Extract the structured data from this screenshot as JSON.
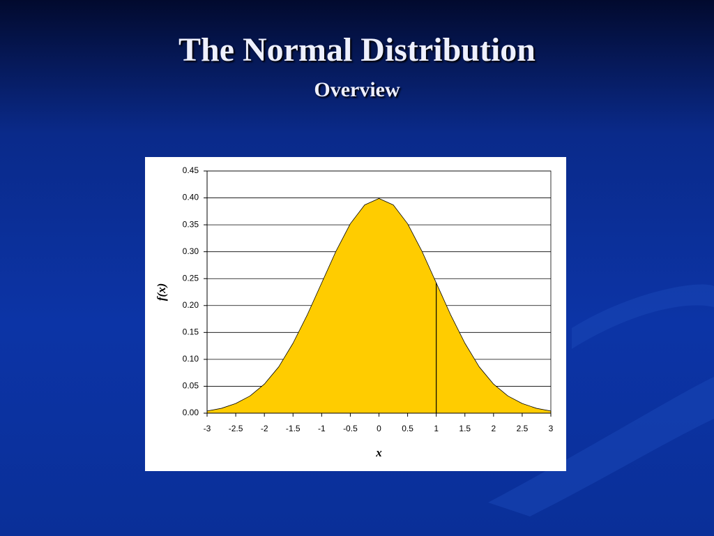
{
  "slide_title": "The Normal Distribution",
  "slide_subtitle": "Overview",
  "chart_data": {
    "type": "area",
    "xlabel": "x",
    "ylabel": "f(x)",
    "color": "#ffcc00",
    "grid": true,
    "x": [
      -3,
      -2.75,
      -2.5,
      -2.25,
      -2,
      -1.75,
      -1.5,
      -1.25,
      -1,
      -0.75,
      -0.5,
      -0.25,
      0,
      0.25,
      0.5,
      0.75,
      1,
      1.25,
      1.5,
      1.75,
      2,
      2.25,
      2.5,
      2.75,
      3
    ],
    "values": [
      0.004,
      0.009,
      0.018,
      0.032,
      0.054,
      0.086,
      0.13,
      0.183,
      0.242,
      0.301,
      0.352,
      0.387,
      0.399,
      0.387,
      0.352,
      0.301,
      0.242,
      0.183,
      0.13,
      0.086,
      0.054,
      0.032,
      0.018,
      0.009,
      0.004
    ],
    "marker": {
      "x": 1,
      "y": 0.242
    },
    "xlim": [
      -3,
      3
    ],
    "xticks": [
      -3,
      -2.5,
      -2,
      -1.5,
      -1,
      -0.5,
      0,
      0.5,
      1,
      1.5,
      2,
      2.5,
      3
    ],
    "ylim": [
      0,
      0.45
    ],
    "yticks": [
      {
        "value": 0,
        "label": "0.00"
      },
      0.05,
      {
        "value": 0.1,
        "label": "0.10"
      },
      0.15,
      {
        "value": 0.2,
        "label": "0.20"
      },
      0.25,
      {
        "value": 0.3,
        "label": "0.30"
      },
      0.35,
      {
        "value": 0.4,
        "label": "0.40"
      },
      0.45
    ]
  }
}
